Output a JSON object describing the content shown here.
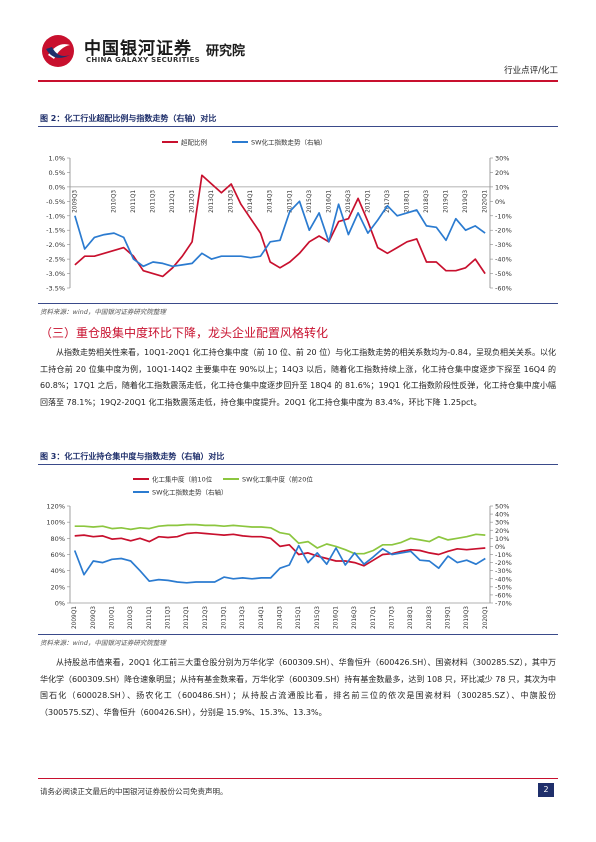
{
  "header": {
    "brand_cn": "中国银河证券",
    "brand_en": "CHINA GALAXY SECURITIES",
    "brand_institute": "研究院",
    "doc_category": "行业点评/化工"
  },
  "figure2": {
    "title": "图 2：化工行业超配比例与指数走势（右轴）对比",
    "source": "资料来源：wind，中国银河证券研究院整理",
    "chart_data": {
      "type": "line",
      "legend_position": "top",
      "categories": [
        "2009Q3",
        "2009Q4",
        "2010Q1",
        "2010Q2",
        "2010Q3",
        "2010Q4",
        "2011Q1",
        "2011Q2",
        "2011Q3",
        "2011Q4",
        "2012Q1",
        "2012Q2",
        "2012Q3",
        "2012Q4",
        "2013Q1",
        "2013Q2",
        "2013Q3",
        "2013Q4",
        "2014Q1",
        "2014Q2",
        "2014Q3",
        "2014Q4",
        "2015Q1",
        "2015Q2",
        "2015Q3",
        "2015Q4",
        "2016Q1",
        "2016Q2",
        "2016Q3",
        "2016Q4",
        "2017Q1",
        "2017Q2",
        "2017Q3",
        "2017Q4",
        "2018Q1",
        "2018Q2",
        "2018Q3",
        "2018Q4",
        "2019Q1",
        "2019Q2",
        "2019Q3",
        "2019Q4",
        "2020Q1"
      ],
      "tick_labels": [
        "2009Q3",
        "2010Q3",
        "2011Q1",
        "2011Q3",
        "2012Q1",
        "2012Q3",
        "2013Q1",
        "2013Q3",
        "2014Q1",
        "2014Q3",
        "2015Q1",
        "2015Q3",
        "2016Q1",
        "2016Q3",
        "2017Q1",
        "2017Q3",
        "2018Q1",
        "2018Q3",
        "2019Q1",
        "2019Q3",
        "2020Q1"
      ],
      "series": [
        {
          "name": "超配比例",
          "axis": "left",
          "color": "#c8102e",
          "values": [
            -2.7,
            -2.4,
            -2.4,
            -2.3,
            -2.2,
            -2.1,
            -2.4,
            -2.9,
            -3.0,
            -3.1,
            -2.8,
            -2.4,
            -1.9,
            0.4,
            0.1,
            -0.2,
            0.1,
            -0.6,
            -1.1,
            -1.6,
            -2.6,
            -2.8,
            -2.6,
            -2.3,
            -1.9,
            -1.7,
            -1.9,
            -1.2,
            -1.1,
            -0.4,
            -1.2,
            -2.1,
            -2.3,
            -2.1,
            -1.9,
            -1.8,
            -2.6,
            -2.6,
            -2.9,
            -2.9,
            -2.8,
            -2.5,
            -3.0
          ]
        },
        {
          "name": "SW化工指数走势（右轴）",
          "axis": "right",
          "color": "#2b7bd0",
          "values": [
            -10,
            -33,
            -25,
            -23,
            -22,
            -25,
            -40,
            -45,
            -42,
            -43,
            -45,
            -44,
            -43,
            -36,
            -40,
            -38,
            -38,
            -38,
            -39,
            -38,
            -28,
            -27,
            -7,
            0,
            -20,
            -8,
            -28,
            -2,
            -23,
            -8,
            -22,
            -13,
            -3,
            -10,
            -8,
            -6,
            -17,
            -18,
            -27,
            -12,
            -20,
            -17,
            -22
          ]
        }
      ],
      "y_left": {
        "min": -3.5,
        "max": 1.0,
        "ticks": [
          "1.0%",
          "0.5%",
          "0.0%",
          "-0.5%",
          "-1.0%",
          "-1.5%",
          "-2.0%",
          "-2.5%",
          "-3.0%",
          "-3.5%"
        ]
      },
      "y_right": {
        "min": -60,
        "max": 30,
        "ticks": [
          "30%",
          "20%",
          "10%",
          "0%",
          "-10%",
          "-20%",
          "-30%",
          "-40%",
          "-50%",
          "-60%"
        ]
      }
    }
  },
  "section": {
    "heading": "（三）重仓股集中度环比下降，龙头企业配置风格转化",
    "paragraph": "从指数走势相关性来看，10Q1-20Q1 化工持仓集中度（前 10 位、前 20 位）与化工指数走势的相关系数均为-0.84，呈现负相关关系。以化工持仓前 20 位集中度为例，10Q1-14Q2 主要集中在 90%以上；14Q3 以后，随着化工指数持续上涨，化工持仓集中度逐步下探至 16Q4 的 60.8%；17Q1 之后，随着化工指数震荡走低，化工持仓集中度逐步回升至 18Q4 的 81.6%；19Q1 化工指数阶段性反弹，化工持仓集中度小幅回落至 78.1%；19Q2-20Q1 化工指数震荡走低，持仓集中度提升。20Q1 化工持仓集中度为 83.4%，环比下降 1.25pct。"
  },
  "figure3": {
    "title": "图 3：化工行业持仓集中度与指数走势（右轴）对比",
    "source": "资料来源：wind，中国银河证券研究院整理",
    "chart_data": {
      "type": "line",
      "legend_position": "top",
      "categories": [
        "2009Q1",
        "2009Q2",
        "2009Q3",
        "2009Q4",
        "2010Q1",
        "2010Q2",
        "2010Q3",
        "2010Q4",
        "2011Q1",
        "2011Q2",
        "2011Q3",
        "2011Q4",
        "2012Q1",
        "2012Q2",
        "2012Q3",
        "2012Q4",
        "2013Q1",
        "2013Q2",
        "2013Q3",
        "2013Q4",
        "2014Q1",
        "2014Q2",
        "2014Q3",
        "2014Q4",
        "2015Q1",
        "2015Q2",
        "2015Q3",
        "2015Q4",
        "2016Q1",
        "2016Q2",
        "2016Q3",
        "2016Q4",
        "2017Q1",
        "2017Q2",
        "2017Q3",
        "2017Q4",
        "2018Q1",
        "2018Q2",
        "2018Q3",
        "2018Q4",
        "2019Q1",
        "2019Q2",
        "2019Q3",
        "2019Q4",
        "2020Q1"
      ],
      "tick_labels": [
        "2009Q1",
        "2009Q3",
        "2010Q1",
        "2010Q3",
        "2011Q1",
        "2011Q3",
        "2012Q1",
        "2012Q3",
        "2013Q1",
        "2013Q3",
        "2014Q1",
        "2014Q3",
        "2015Q1",
        "2015Q3",
        "2016Q1",
        "2016Q3",
        "2017Q1",
        "2017Q3",
        "2018Q1",
        "2018Q3",
        "2019Q1",
        "2019Q3",
        "2020Q1"
      ],
      "series": [
        {
          "name": "化工集中度（前10位",
          "axis": "left",
          "color": "#c8102e",
          "values": [
            83,
            84,
            82,
            83,
            79,
            80,
            77,
            80,
            76,
            82,
            81,
            82,
            86,
            87,
            86,
            85,
            84,
            85,
            83,
            82,
            82,
            80,
            70,
            72,
            60,
            62,
            58,
            55,
            52,
            52,
            50,
            46,
            53,
            60,
            61,
            64,
            66,
            65,
            62,
            60,
            64,
            67,
            66,
            67,
            68
          ]
        },
        {
          "name": "SW化工集中度（前20位",
          "axis": "left",
          "color": "#8cc63f",
          "values": [
            95,
            95,
            94,
            95,
            92,
            93,
            91,
            93,
            92,
            95,
            96,
            96,
            97,
            97,
            96,
            96,
            95,
            96,
            95,
            94,
            94,
            93,
            87,
            85,
            74,
            76,
            68,
            73,
            70,
            66,
            61,
            61,
            65,
            72,
            72,
            75,
            80,
            78,
            76,
            82,
            78,
            80,
            82,
            85,
            84
          ]
        },
        {
          "name": "SW化工指数走势（右轴）",
          "axis": "right",
          "color": "#2b7bd0",
          "values": [
            -5,
            -35,
            -18,
            -20,
            -16,
            -15,
            -18,
            -30,
            -43,
            -41,
            -42,
            -44,
            -45,
            -44,
            -44,
            -44,
            -38,
            -40,
            -39,
            -40,
            -39,
            -39,
            -27,
            -23,
            1,
            -20,
            -8,
            -22,
            -2,
            -23,
            -8,
            -22,
            -13,
            -3,
            -10,
            -8,
            -6,
            -17,
            -18,
            -27,
            -12,
            -20,
            -17,
            -22,
            -15
          ]
        }
      ],
      "y_left": {
        "min": 0,
        "max": 120,
        "ticks": [
          "120%",
          "100%",
          "80%",
          "60%",
          "40%",
          "20%",
          "0%"
        ]
      },
      "y_right": {
        "min": -70,
        "max": 50,
        "ticks": [
          "50%",
          "40%",
          "30%",
          "20%",
          "10%",
          "0%",
          "-10%",
          "-20%",
          "-30%",
          "-40%",
          "-50%",
          "-60%",
          "-70%"
        ]
      }
    }
  },
  "body2": {
    "paragraph": "从持股总市值来看，20Q1 化工前三大重仓股分别为万华化学（600309.SH）、华鲁恒升（600426.SH）、国瓷材料（300285.SZ），其中万华化学（600309.SH）降仓速象明显；从持有基金数来看，万华化学（600309.SH）持有基金数最多，达到 108 只，环比减少 78 只，其次为中国石化（600028.SH）、扬农化工（600486.SH）；从持股占流通股比看，排名前三位的依次是国瓷材料（300285.SZ）、中旗股份（300575.SZ）、华鲁恒升（600426.SH），分别是 15.9%、15.3%、13.3%。"
  },
  "footer": {
    "disclaimer": "请务必阅读正文最后的中国银河证券股份公司免责声明。",
    "page_number": "2"
  }
}
